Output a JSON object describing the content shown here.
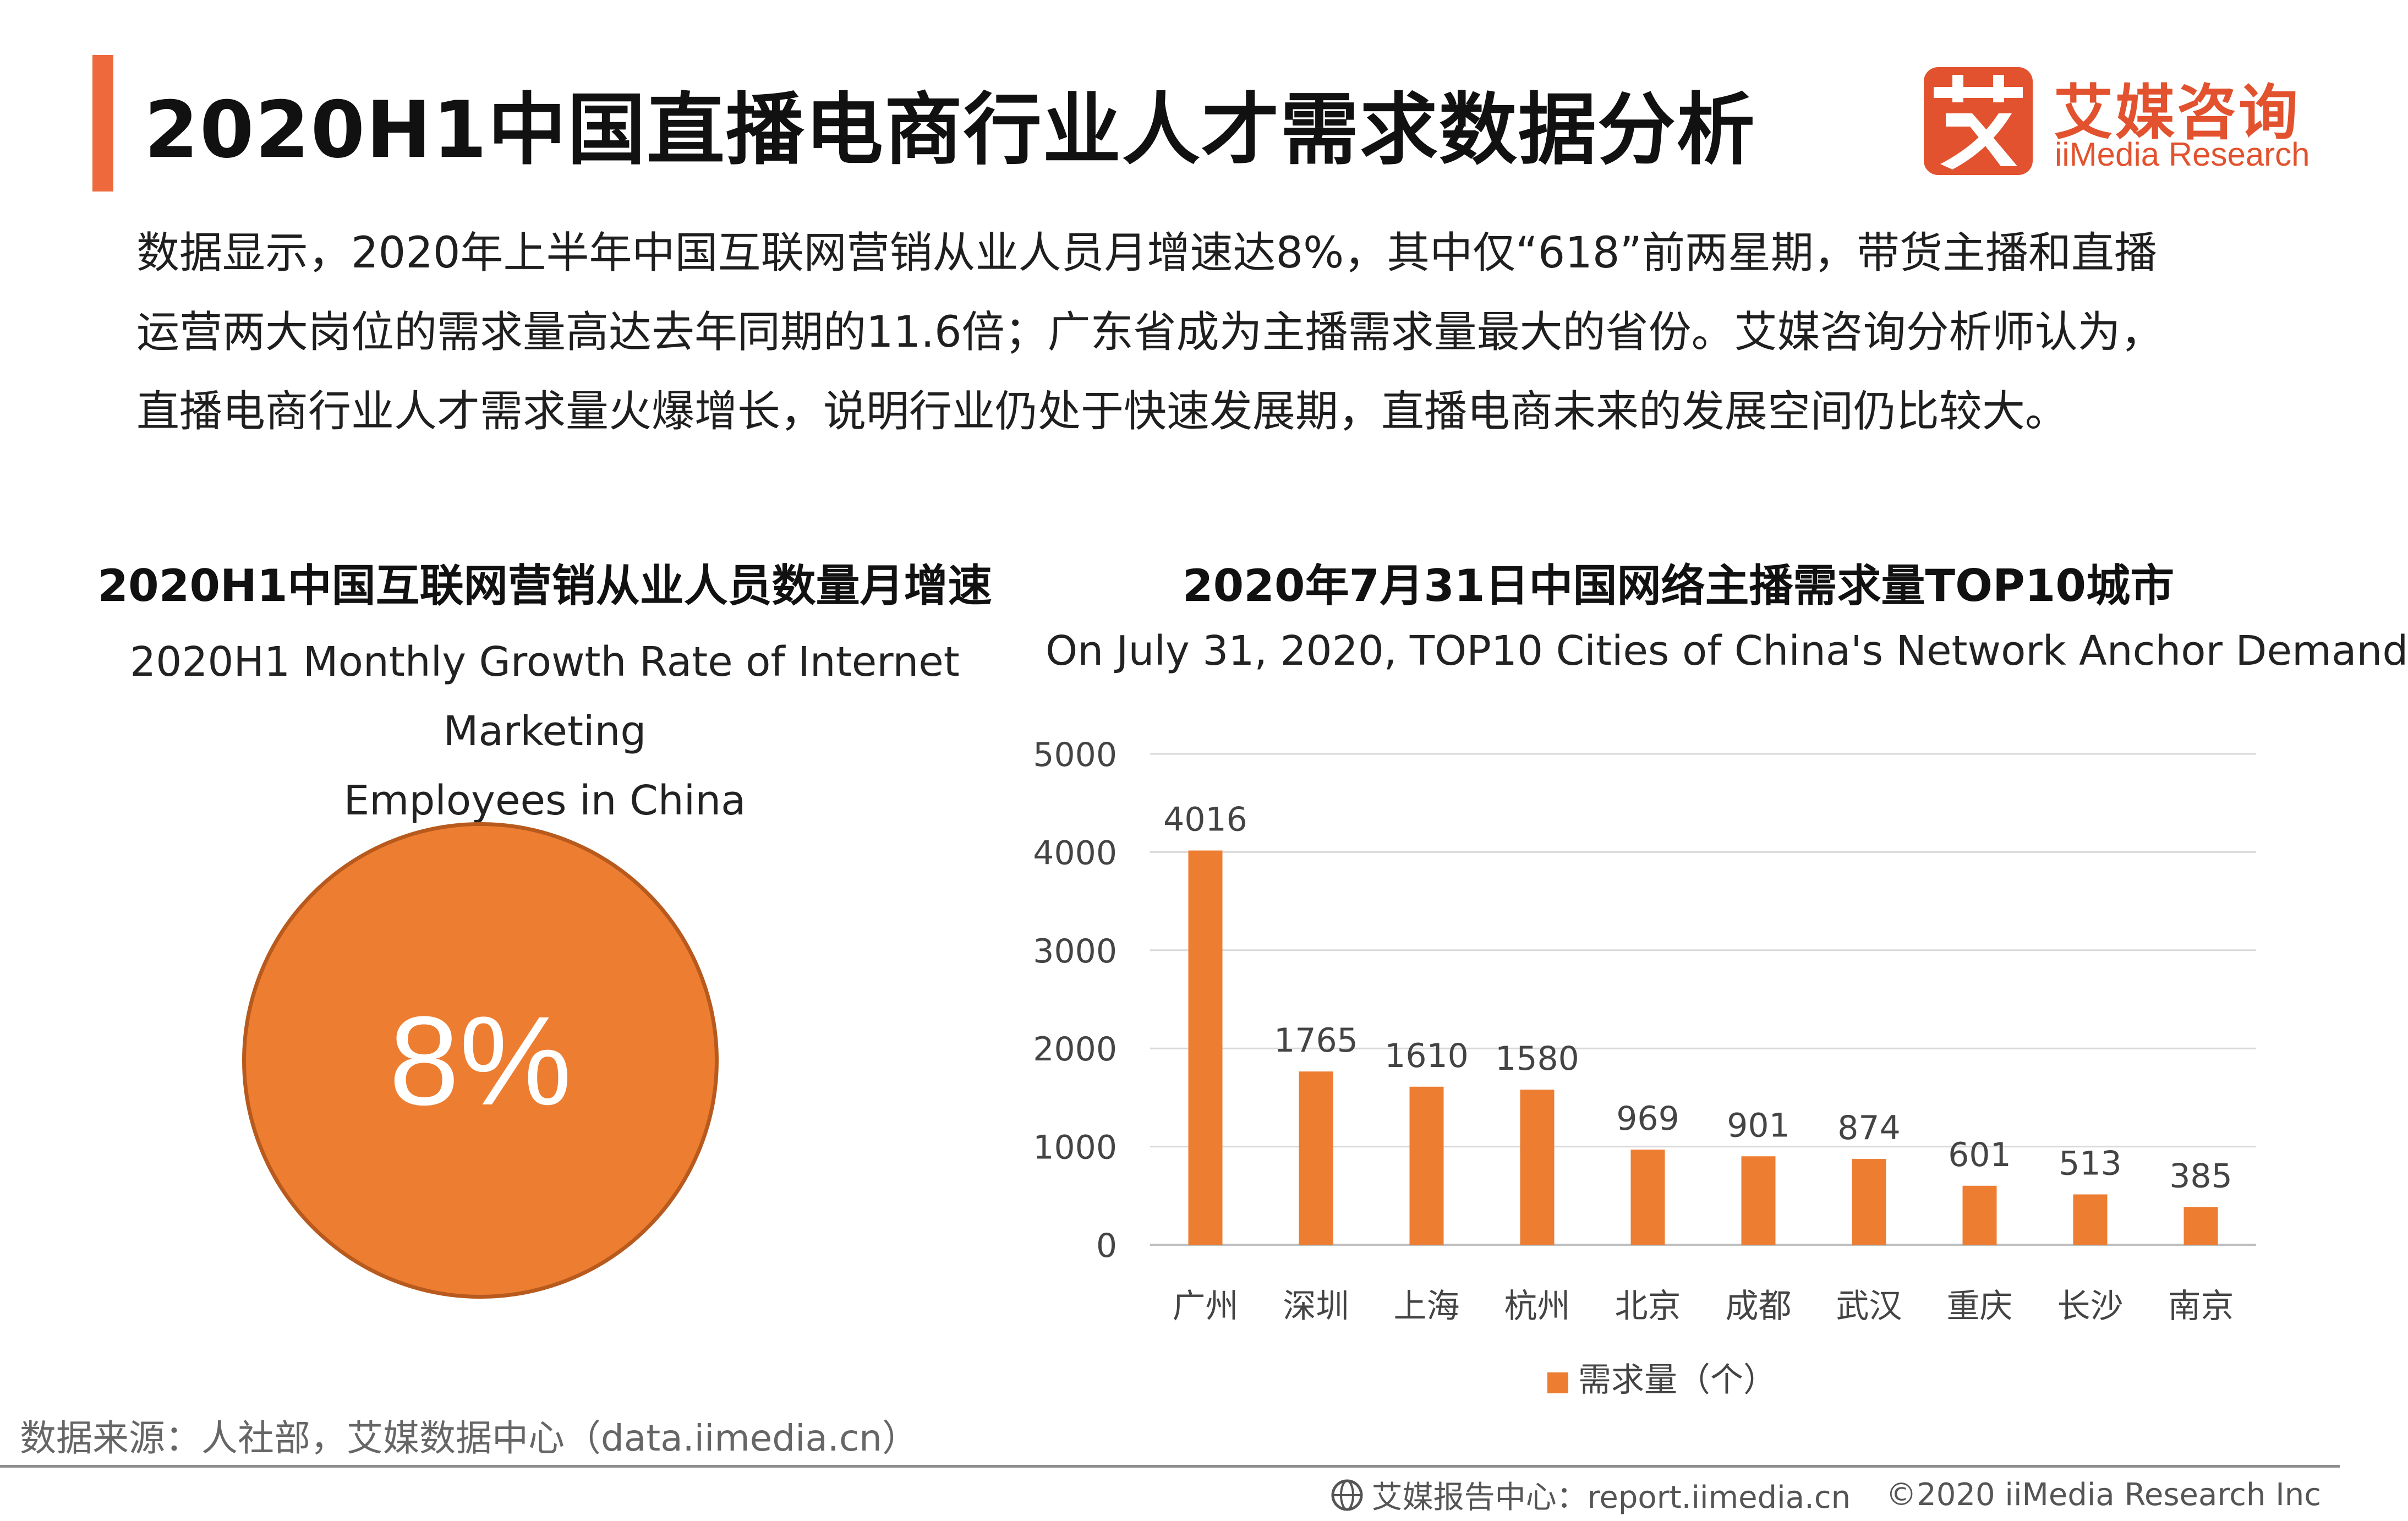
{
  "header": {
    "title": "2020H1中国直播电商行业人才需求数据分析",
    "logo_cn": "艾媒咨询",
    "logo_en": "iiMedia Research",
    "logo_mark_char": "艾"
  },
  "description": {
    "lines": [
      "数据显示，2020年上半年中国互联网营销从业人员月增速达8%，其中仅“618”前两星期，带货主播和直播",
      "运营两大岗位的需求量高达去年同期的11.6倍；广东省成为主播需求量最大的省份。艾媒咨询分析师认为，",
      "直播电商行业人才需求量火爆增长，说明行业仍处于快速发展期，直播电商未来的发展空间仍比较大。"
    ]
  },
  "left_panel": {
    "title": "2020H1中国互联网营销从业人员数量月增速",
    "subtitle_line1": "2020H1 Monthly Growth Rate of Internet Marketing",
    "subtitle_line2": "Employees in China",
    "value": "8%"
  },
  "right_panel": {
    "title": "2020年7月31日中国网络主播需求量TOP10城市",
    "subtitle": "On July 31, 2020, TOP10 Cities of China's Network Anchor Demand"
  },
  "chart_data": {
    "type": "bar",
    "title": "2020年7月31日中国网络主播需求量TOP10城市",
    "subtitle": "On July 31, 2020, TOP10 Cities of China's Network Anchor Demand",
    "categories": [
      "广州",
      "深圳",
      "上海",
      "杭州",
      "北京",
      "成都",
      "武汉",
      "重庆",
      "长沙",
      "南京"
    ],
    "series": [
      {
        "name": "需求量（个）",
        "values": [
          4016,
          1765,
          1610,
          1580,
          969,
          901,
          874,
          601,
          513,
          385
        ]
      }
    ],
    "ylim": [
      0,
      5000
    ],
    "yticks": [
      0,
      1000,
      2000,
      3000,
      4000,
      5000
    ],
    "grid": true,
    "legend_position": "bottom",
    "color": "#ed7d31"
  },
  "footer": {
    "source": "数据来源：人社部，艾媒数据中心（data.iimedia.cn）",
    "report": "艾媒报告中心：report.iimedia.cn",
    "copyright": "©2020  iiMedia Research  Inc"
  }
}
